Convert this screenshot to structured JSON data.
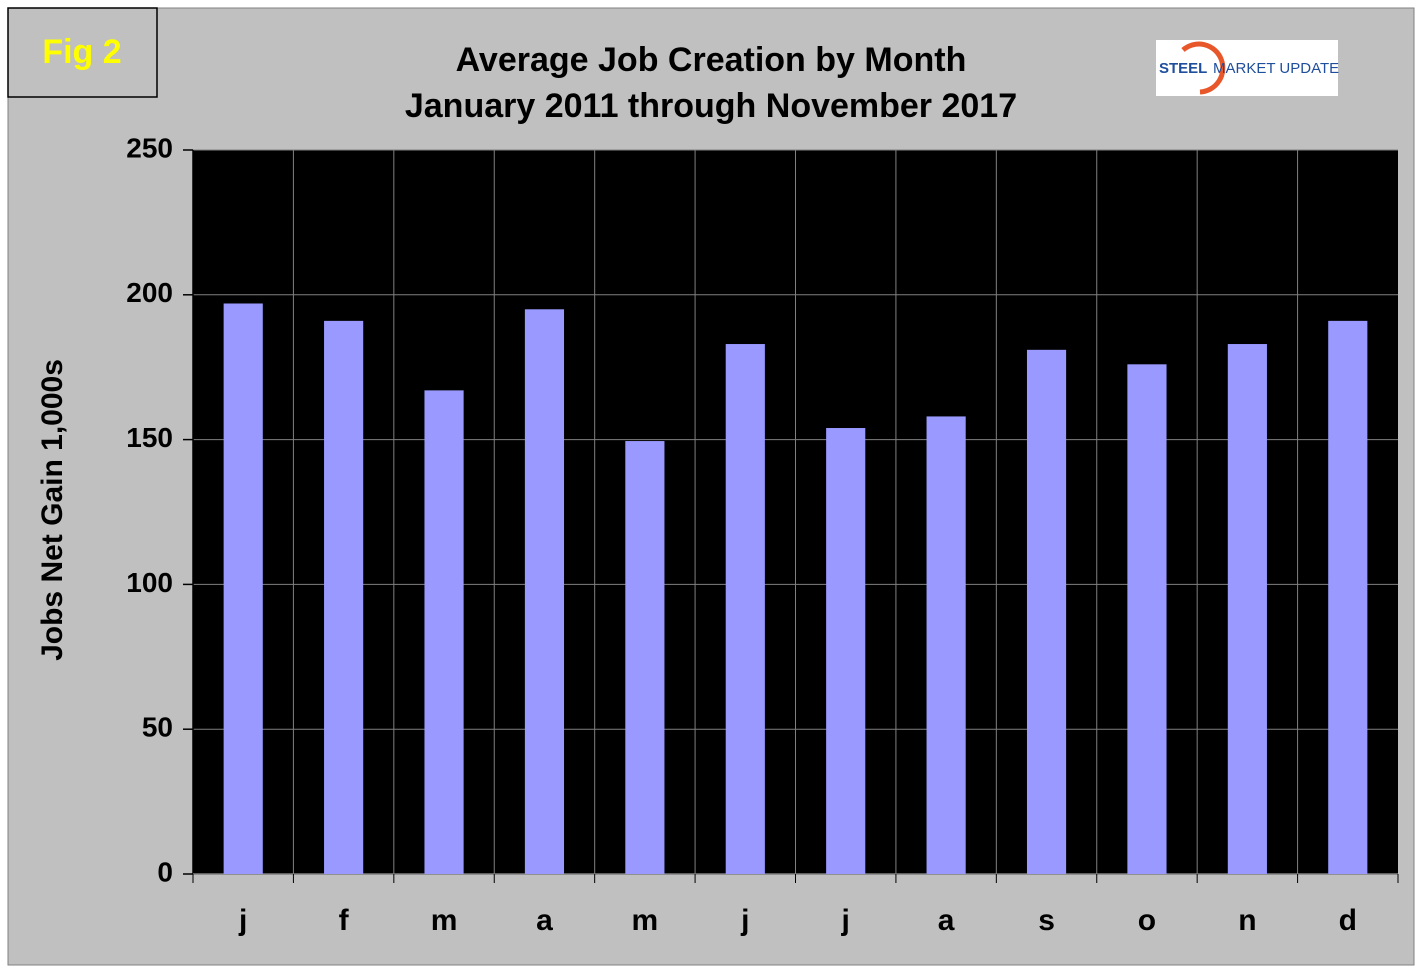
{
  "figure_label": "Fig 2",
  "logo": {
    "strong": "STEEL",
    "light": "MARKET UPDATE"
  },
  "chart_data": {
    "type": "bar",
    "title": "Average Job Creation by Month",
    "subtitle": "January 2011 through November 2017",
    "y_label": "Jobs Net Gain 1,000s",
    "categories": [
      "j",
      "f",
      "m",
      "a",
      "m",
      "j",
      "j",
      "a",
      "s",
      "o",
      "n",
      "d"
    ],
    "values": [
      197,
      191,
      167,
      195,
      149.5,
      183,
      154,
      158,
      181,
      176,
      183,
      191
    ],
    "color": "#9999ff",
    "ylim": [
      0,
      250
    ],
    "yticks": [
      0,
      50,
      100,
      150,
      200,
      250
    ],
    "grid": true
  }
}
